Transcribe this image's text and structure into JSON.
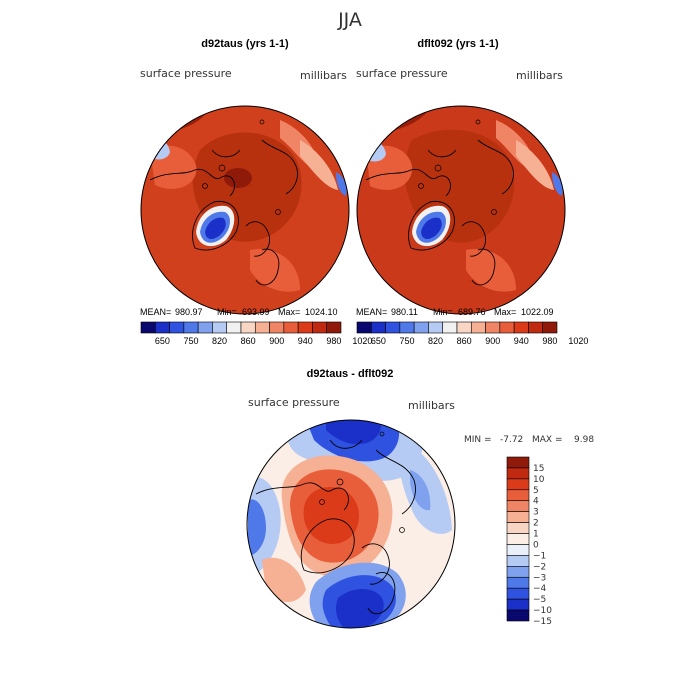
{
  "figure": {
    "title": "JJA"
  },
  "chart_data": [
    {
      "type": "heatmap",
      "title": "d92taus (yrs 1-1)",
      "left_label": "surface pressure",
      "right_label": "millibars",
      "stats": {
        "mean_label": "MEAN=",
        "mean": "980.97",
        "min_label": "Min=",
        "min": "693.99",
        "max_label": "Max=",
        "max": "1024.10"
      },
      "colorbar": {
        "tick_labels": [
          "650",
          "750",
          "820",
          "860",
          "900",
          "940",
          "980",
          "1020"
        ],
        "colors": [
          "#08086e",
          "#1b2fc9",
          "#2f53e0",
          "#4f79e8",
          "#7fa1ee",
          "#b5cbf4",
          "#f1f1f1",
          "#f9d5c4",
          "#f6b094",
          "#f08565",
          "#e85e3a",
          "#dc3b1a",
          "#c02a10",
          "#8f1a0a"
        ]
      },
      "field": {
        "pole_value_mb": 1010,
        "greenland_value_mb": 700,
        "ocean_value_mb": 1012
      }
    },
    {
      "type": "heatmap",
      "title": "dflt092 (yrs 1-1)",
      "left_label": "surface pressure",
      "right_label": "millibars",
      "stats": {
        "mean_label": "MEAN=",
        "mean": "980.11",
        "min_label": "Min=",
        "min": "689.76",
        "max_label": "Max=",
        "max": "1022.09"
      },
      "colorbar": {
        "tick_labels": [
          "650",
          "750",
          "820",
          "860",
          "900",
          "940",
          "980",
          "1020"
        ],
        "colors": [
          "#08086e",
          "#1b2fc9",
          "#2f53e0",
          "#4f79e8",
          "#7fa1ee",
          "#b5cbf4",
          "#f1f1f1",
          "#f9d5c4",
          "#f6b094",
          "#f08565",
          "#e85e3a",
          "#dc3b1a",
          "#c02a10",
          "#8f1a0a"
        ]
      },
      "field": {
        "pole_value_mb": 1008,
        "greenland_value_mb": 690,
        "ocean_value_mb": 1010
      }
    },
    {
      "type": "heatmap",
      "title": "d92taus - dflt092",
      "left_label": "surface pressure",
      "right_label": "millibars",
      "stats": {
        "min_label": "MIN =",
        "min": "-7.72",
        "max_label": "MAX =",
        "max": "9.98"
      },
      "colorbar": {
        "tick_labels": [
          "15",
          "10",
          "5",
          "4",
          "3",
          "2",
          "1",
          "0",
          "−1",
          "−2",
          "−3",
          "−4",
          "−5",
          "−10",
          "−15"
        ],
        "colors": [
          "#8f1a0a",
          "#c02a10",
          "#dc3b1a",
          "#e85e3a",
          "#f08565",
          "#f6b094",
          "#f9d5c4",
          "#fbeee6",
          "#eaf0fa",
          "#b5cbf4",
          "#7fa1ee",
          "#4f79e8",
          "#2f53e0",
          "#1b2fc9",
          "#08086e"
        ]
      },
      "field": {
        "arctic_anomaly": 4,
        "atlantic_anomaly": -6,
        "pacific_anomaly": -3
      }
    }
  ]
}
